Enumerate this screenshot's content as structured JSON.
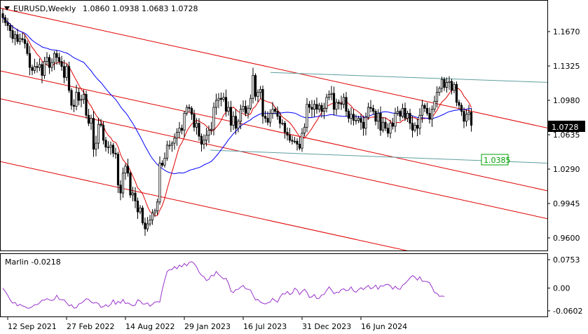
{
  "header": {
    "symbol": "EURUSD,Weekly",
    "ohlc": "1.0860 1.0938 1.0683 1.0728"
  },
  "colors": {
    "candle": "#000000",
    "bull_body": "#ffffff",
    "ma_red": "#e00000",
    "ma_blue": "#0000ff",
    "channel": "#e00000",
    "teal_line": "#5f9ea0",
    "indicator": "#9932cc",
    "level_label_bg": "#ffffff",
    "level_label_border": "#00a000",
    "level_label_text": "#00a000"
  },
  "chart_data": [
    {
      "type": "candlestick",
      "title": "EURUSD,Weekly",
      "ylim": [
        0.95,
        1.198
      ],
      "y_ticks": [
        "1.1670",
        "1.1325",
        "1.0980",
        "1.0635",
        "1.0290",
        "0.9945",
        "0.9600"
      ],
      "x_ticks": [
        "12 Sep 2021",
        "27 Feb 2022",
        "14 Aug 2022",
        "29 Jan 2023",
        "16 Jul 2023",
        "31 Dec 2023",
        "16 Jun 2024"
      ],
      "current_price": "1.0728",
      "level_label": "1.0385",
      "close": [
        1.181,
        1.176,
        1.173,
        1.168,
        1.16,
        1.164,
        1.157,
        1.16,
        1.159,
        1.155,
        1.145,
        1.131,
        1.128,
        1.132,
        1.131,
        1.134,
        1.123,
        1.137,
        1.141,
        1.131,
        1.136,
        1.145,
        1.141,
        1.137,
        1.132,
        1.121,
        1.132,
        1.108,
        1.093,
        1.092,
        1.106,
        1.098,
        1.099,
        1.104,
        1.083,
        1.075,
        1.08,
        1.049,
        1.055,
        1.074,
        1.073,
        1.058,
        1.051,
        1.051,
        1.053,
        1.045,
        1.044,
        1.013,
        1.005,
        1.025,
        1.032,
        1.025,
        1.003,
        1.005,
        0.997,
        0.986,
        0.99,
        0.975,
        0.969,
        0.974,
        0.978,
        0.985,
        0.987,
        0.996,
        1.035,
        1.033,
        1.04,
        1.053,
        1.053,
        1.055,
        1.06,
        1.066,
        1.07,
        1.068,
        1.085,
        1.091,
        1.09,
        1.084,
        1.071,
        1.075,
        1.062,
        1.054,
        1.058,
        1.063,
        1.068,
        1.069,
        1.091,
        1.098,
        1.1,
        1.099,
        1.101,
        1.087,
        1.091,
        1.073,
        1.082,
        1.07,
        1.077,
        1.089,
        1.092,
        1.085,
        1.09,
        1.1,
        1.123,
        1.102,
        1.106,
        1.109,
        1.082,
        1.08,
        1.076,
        1.085,
        1.089,
        1.087,
        1.082,
        1.075,
        1.075,
        1.066,
        1.063,
        1.058,
        1.057,
        1.057,
        1.054,
        1.05,
        1.065,
        1.071,
        1.094,
        1.091,
        1.089,
        1.094,
        1.089,
        1.093,
        1.087,
        1.09,
        1.101,
        1.104,
        1.105,
        1.089,
        1.096,
        1.095,
        1.094,
        1.101,
        1.087,
        1.08,
        1.084,
        1.078,
        1.078,
        1.08,
        1.076,
        1.07,
        1.081,
        1.091,
        1.09,
        1.087,
        1.077,
        1.085,
        1.068,
        1.076,
        1.07,
        1.065,
        1.075,
        1.072,
        1.085,
        1.087,
        1.082,
        1.09,
        1.08,
        1.085,
        1.075,
        1.068,
        1.073,
        1.07,
        1.083,
        1.093,
        1.09,
        1.085,
        1.079,
        1.089,
        1.097,
        1.106,
        1.11,
        1.119,
        1.111,
        1.116,
        1.117,
        1.108,
        1.114,
        1.096,
        1.093,
        1.087,
        1.077,
        1.084,
        1.086,
        1.073
      ]
    },
    {
      "type": "line",
      "title": "Marlin -0.0218",
      "ylim": [
        -0.07,
        0.085
      ],
      "y_ticks": [
        "0.0753",
        "0.00",
        "-0.0602"
      ],
      "current_value": -0.0218,
      "values": [
        0.0,
        -0.009,
        -0.019,
        -0.031,
        -0.04,
        -0.038,
        -0.047,
        -0.043,
        -0.047,
        -0.049,
        -0.053,
        -0.053,
        -0.049,
        -0.044,
        -0.044,
        -0.039,
        -0.032,
        -0.032,
        -0.028,
        -0.031,
        -0.033,
        -0.03,
        -0.019,
        -0.03,
        -0.031,
        -0.031,
        -0.039,
        -0.047,
        -0.044,
        -0.053,
        -0.052,
        -0.042,
        -0.04,
        -0.035,
        -0.028,
        -0.03,
        -0.037,
        -0.04,
        -0.038,
        -0.041,
        -0.051,
        -0.049,
        -0.044,
        -0.049,
        -0.043,
        -0.031,
        -0.043,
        -0.035,
        -0.04,
        -0.03,
        -0.041,
        -0.039,
        -0.043,
        -0.047,
        -0.045,
        -0.031,
        -0.034,
        -0.042,
        -0.042,
        -0.039,
        -0.048,
        -0.043,
        -0.037,
        -0.036,
        -0.037,
        -0.004,
        0.021,
        0.044,
        0.049,
        0.049,
        0.057,
        0.051,
        0.061,
        0.056,
        0.065,
        0.059,
        0.068,
        0.07,
        0.065,
        0.056,
        0.042,
        0.034,
        0.03,
        0.02,
        0.023,
        0.034,
        0.032,
        0.044,
        0.036,
        0.03,
        0.024,
        0.026,
        0.013,
        -0.008,
        -0.012,
        -0.004,
        -0.003,
        0.003,
        0.007,
        -0.002,
        -0.003,
        -0.005,
        -0.019,
        -0.031,
        -0.03,
        -0.037,
        -0.04,
        -0.042,
        -0.039,
        -0.037,
        -0.027,
        -0.033,
        -0.037,
        -0.024,
        -0.015,
        -0.016,
        -0.009,
        -0.017,
        -0.014,
        0.0,
        -0.005,
        -0.017,
        -0.009,
        -0.003,
        -0.011,
        -0.025,
        -0.023,
        -0.017,
        -0.028,
        -0.027,
        -0.018,
        -0.017,
        -0.006,
        0.003,
        -0.005,
        -0.015,
        -0.011,
        -0.012,
        -0.004,
        -0.002,
        -0.007,
        -0.005,
        0.003,
        -0.008,
        -0.011,
        -0.004,
        0.001,
        -0.004,
        0.002,
        0.007,
        -0.002,
        0.001,
        0.008,
        -0.003,
        0.006,
        0.005,
        0.009,
        0.01,
        0.006,
        -0.003,
        0.005,
        -0.002,
        -0.003,
        0.008,
        0.012,
        0.019,
        0.027,
        0.033,
        0.029,
        0.021,
        0.03,
        0.018,
        0.018,
        0.017,
        0.014,
        0.002,
        -0.012,
        -0.014,
        -0.022,
        -0.021,
        -0.022
      ]
    }
  ]
}
